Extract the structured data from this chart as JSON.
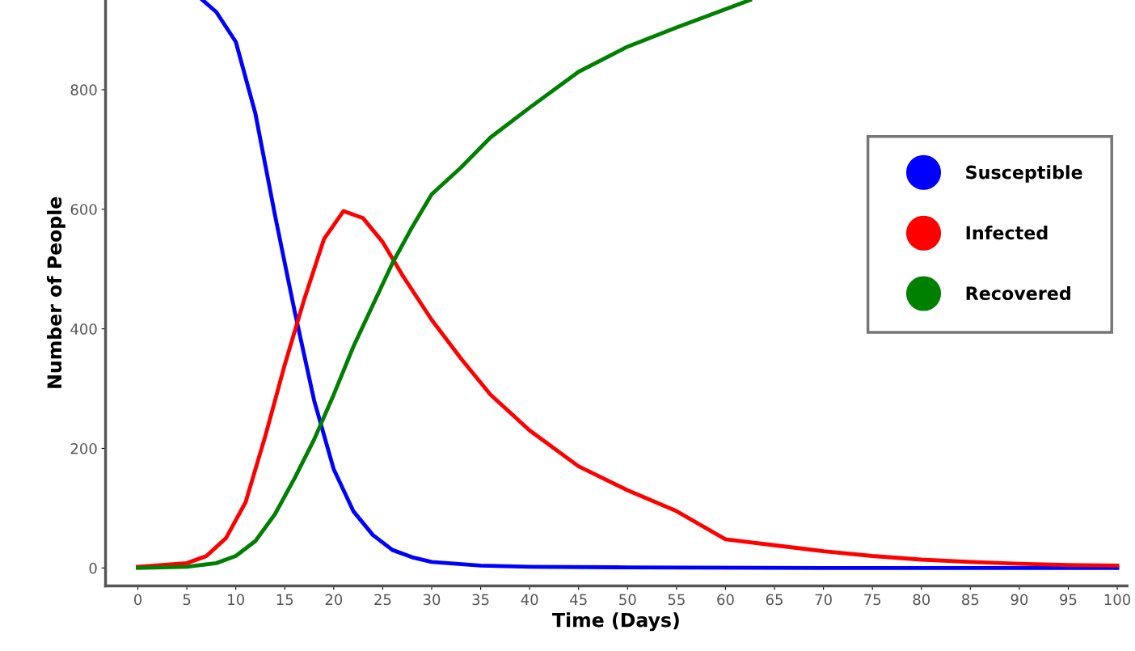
{
  "chart_data": {
    "type": "line",
    "xlabel": "Time (Days)",
    "ylabel": "Number of People",
    "xlim": [
      -3.3,
      101
    ],
    "ylim": [
      -30,
      950
    ],
    "xticks": [
      0,
      5,
      10,
      15,
      20,
      25,
      30,
      35,
      40,
      45,
      50,
      55,
      60,
      65,
      70,
      75,
      80,
      85,
      90,
      95,
      100
    ],
    "yticks": [
      0,
      200,
      400,
      600,
      800
    ],
    "grid": false,
    "legend": "right",
    "series": [
      {
        "name": "Susceptible",
        "color": "#0000ff",
        "x": [
          6.6,
          8,
          10,
          12,
          14,
          16,
          18,
          20,
          22,
          24,
          26,
          28,
          30,
          35,
          40,
          50,
          70,
          100
        ],
        "values": [
          950,
          930,
          880,
          760,
          590,
          430,
          280,
          165,
          95,
          55,
          30,
          18,
          10,
          4,
          2,
          1,
          0,
          0
        ]
      },
      {
        "name": "Infected",
        "color": "#ff0000",
        "x": [
          0,
          5,
          7,
          9,
          11,
          13,
          15,
          17,
          19,
          21,
          23,
          25,
          27,
          30,
          33,
          36,
          40,
          45,
          50,
          55,
          60,
          65,
          70,
          75,
          80,
          85,
          90,
          95,
          100
        ],
        "values": [
          2,
          8,
          20,
          50,
          110,
          220,
          340,
          450,
          550,
          597,
          585,
          545,
          490,
          415,
          350,
          290,
          230,
          170,
          130,
          95,
          48,
          38,
          28,
          20,
          14,
          10,
          7,
          5,
          4
        ]
      },
      {
        "name": "Recovered",
        "color": "#008000",
        "x": [
          0,
          5,
          8,
          10,
          12,
          14,
          16,
          18,
          20,
          22,
          24,
          26,
          28,
          30,
          33,
          36,
          40,
          45,
          50,
          55,
          62.5
        ],
        "values": [
          0,
          2,
          8,
          20,
          45,
          90,
          150,
          215,
          290,
          370,
          440,
          510,
          570,
          625,
          670,
          720,
          770,
          830,
          872,
          904,
          950
        ]
      }
    ]
  }
}
